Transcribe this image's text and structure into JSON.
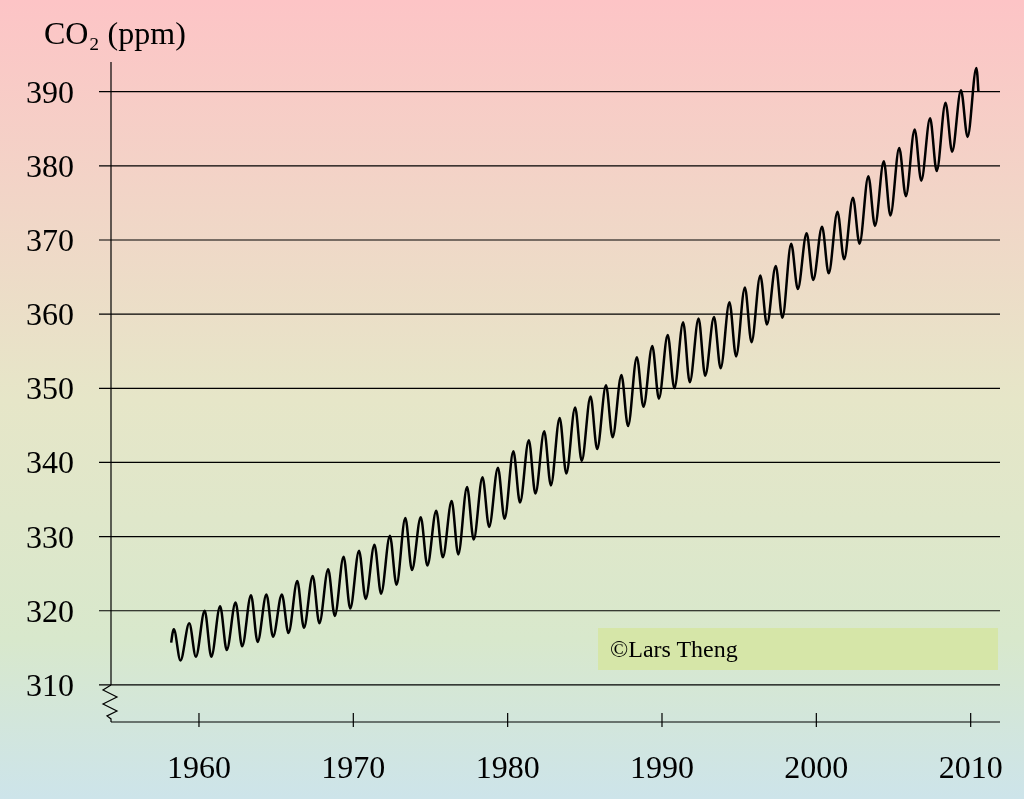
{
  "chart_data": {
    "type": "line",
    "ylabel": "CO₂ (ppm)",
    "xlim": [
      1954.3,
      2011.9
    ],
    "xticks": [
      1960,
      1970,
      1980,
      1990,
      2000,
      2010
    ],
    "ylim": [
      305,
      394
    ],
    "yticks": [
      310,
      320,
      330,
      340,
      350,
      360,
      370,
      380,
      390
    ],
    "grid": "y",
    "marker": "none",
    "line_style": "solid",
    "annotations": [
      "©Lars Theng"
    ],
    "series": [
      {
        "color": "#000000",
        "x": [
          1958.2,
          1958.37,
          1958.8,
          1959.37,
          1959.8,
          1960.37,
          1960.8,
          1961.37,
          1961.8,
          1962.37,
          1962.8,
          1963.37,
          1963.8,
          1964.37,
          1964.8,
          1965.37,
          1965.8,
          1966.37,
          1966.8,
          1967.37,
          1967.8,
          1968.37,
          1968.8,
          1969.37,
          1969.8,
          1970.37,
          1970.8,
          1971.37,
          1971.8,
          1972.37,
          1972.8,
          1973.37,
          1973.8,
          1974.37,
          1974.8,
          1975.37,
          1975.8,
          1976.37,
          1976.8,
          1977.37,
          1977.8,
          1978.37,
          1978.8,
          1979.37,
          1979.8,
          1980.37,
          1980.8,
          1981.37,
          1981.8,
          1982.37,
          1982.8,
          1983.37,
          1983.8,
          1984.37,
          1984.8,
          1985.37,
          1985.8,
          1986.37,
          1986.8,
          1987.37,
          1987.8,
          1988.37,
          1988.8,
          1989.37,
          1989.8,
          1990.37,
          1990.8,
          1991.37,
          1991.8,
          1992.37,
          1992.8,
          1993.37,
          1993.8,
          1994.37,
          1994.8,
          1995.37,
          1995.8,
          1996.37,
          1996.8,
          1997.37,
          1997.8,
          1998.37,
          1998.8,
          1999.37,
          1999.8,
          2000.37,
          2000.8,
          2001.37,
          2001.8,
          2002.37,
          2002.8,
          2003.37,
          2003.8,
          2004.37,
          2004.8,
          2005.37,
          2005.8,
          2006.37,
          2006.8,
          2007.37,
          2007.8,
          2008.37,
          2008.8,
          2009.37,
          2009.8,
          2010.37,
          2010.5
        ],
        "values": [
          315.7,
          317.5,
          313.3,
          318.3,
          313.8,
          320.0,
          313.8,
          320.6,
          314.7,
          321.1,
          315.2,
          322.1,
          315.8,
          322.2,
          316.5,
          322.2,
          317.0,
          324.0,
          317.7,
          324.7,
          318.3,
          325.6,
          319.3,
          327.3,
          320.3,
          328.1,
          321.6,
          328.9,
          322.3,
          330.1,
          323.5,
          332.5,
          325.5,
          332.6,
          326.1,
          333.5,
          327.2,
          334.8,
          327.6,
          336.7,
          329.6,
          338.0,
          331.3,
          339.3,
          332.4,
          341.5,
          334.6,
          343.0,
          335.8,
          344.2,
          336.9,
          346.0,
          338.5,
          347.4,
          340.2,
          348.9,
          341.8,
          350.4,
          343.4,
          351.8,
          344.9,
          354.2,
          347.5,
          355.7,
          348.6,
          357.2,
          350.0,
          358.9,
          350.8,
          359.4,
          351.7,
          359.6,
          352.7,
          361.6,
          354.3,
          363.6,
          356.2,
          365.2,
          358.6,
          366.5,
          359.5,
          369.5,
          363.4,
          370.9,
          364.6,
          371.8,
          365.5,
          373.8,
          367.4,
          375.7,
          369.5,
          378.6,
          371.9,
          380.6,
          373.3,
          382.4,
          375.9,
          384.9,
          378.0,
          386.4,
          379.3,
          388.5,
          381.9,
          390.2,
          383.9,
          393.2,
          390.0
        ]
      }
    ]
  }
}
